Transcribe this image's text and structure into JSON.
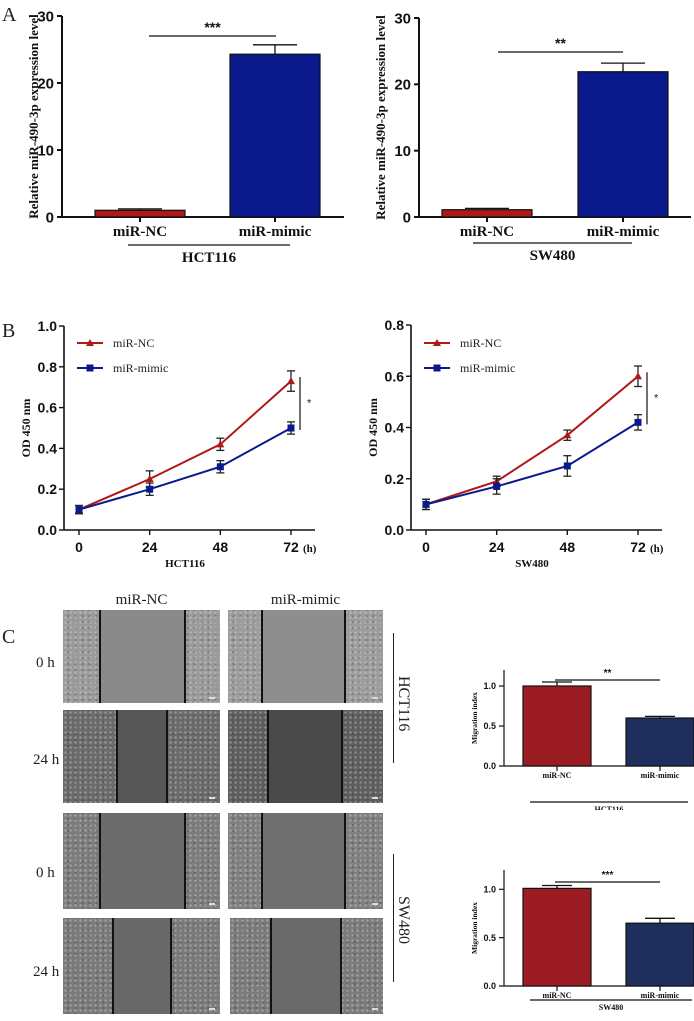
{
  "panels": {
    "A": {
      "letter": "A"
    },
    "B": {
      "letter": "B"
    },
    "C": {
      "letter": "C",
      "columns": [
        "miR-NC",
        "miR-mimic"
      ],
      "rows": [
        {
          "time": "0 h",
          "cell_line": "HCT116"
        },
        {
          "time": "24 h",
          "cell_line": "HCT116"
        },
        {
          "time": "0 h",
          "cell_line": "SW480"
        },
        {
          "time": "24 h",
          "cell_line": "SW480"
        }
      ],
      "group_labels": [
        "HCT116",
        "SW480"
      ]
    }
  },
  "colors": {
    "nc_red": "#b01818",
    "mimic_blue": "#0a1a8c",
    "migration_red": "#9b1c22",
    "migration_blue": "#1e2f5e",
    "axis": "#111111"
  },
  "chart_data": [
    {
      "id": "A-HCT116",
      "type": "bar",
      "title": "",
      "ylabel": "Relative miR-490-3p expression level",
      "xlabel": "HCT116",
      "categories": [
        "miR-NC",
        "miR-mimic"
      ],
      "values": [
        1.0,
        24.3
      ],
      "errors": [
        0.2,
        1.4
      ],
      "ylim": [
        0,
        30
      ],
      "yticks": [
        "0",
        "10",
        "20",
        "30"
      ],
      "significance": "***"
    },
    {
      "id": "A-SW480",
      "type": "bar",
      "title": "",
      "ylabel": "Relative miR-490-3p expression level",
      "xlabel": "SW480",
      "categories": [
        "miR-NC",
        "miR-mimic"
      ],
      "values": [
        1.1,
        21.9
      ],
      "errors": [
        0.2,
        1.3
      ],
      "ylim": [
        0,
        30
      ],
      "yticks": [
        "0",
        "10",
        "20",
        "30"
      ],
      "significance": "**"
    },
    {
      "id": "B-HCT116",
      "type": "line",
      "ylabel": "OD 450 nm",
      "xlabel": "HCT116",
      "x_unit": "(h)",
      "x": [
        0,
        24,
        48,
        72
      ],
      "xticks": [
        "0",
        "24",
        "48",
        "72"
      ],
      "ylim": [
        0,
        1.0
      ],
      "yticks": [
        "0.0",
        "0.2",
        "0.4",
        "0.6",
        "0.8",
        "1.0"
      ],
      "legend": "top-left",
      "series": [
        {
          "name": "miR-NC",
          "values": [
            0.1,
            0.25,
            0.42,
            0.73
          ],
          "errors": [
            0.02,
            0.04,
            0.03,
            0.05
          ],
          "marker": "triangle"
        },
        {
          "name": "miR-mimic",
          "values": [
            0.1,
            0.2,
            0.31,
            0.5
          ],
          "errors": [
            0.02,
            0.03,
            0.03,
            0.03
          ],
          "marker": "square"
        }
      ],
      "significance": "*"
    },
    {
      "id": "B-SW480",
      "type": "line",
      "ylabel": "OD 450 nm",
      "xlabel": "SW480",
      "x_unit": "(h)",
      "x": [
        0,
        24,
        48,
        72
      ],
      "xticks": [
        "0",
        "24",
        "48",
        "72"
      ],
      "ylim": [
        0,
        0.8
      ],
      "yticks": [
        "0.0",
        "0.2",
        "0.4",
        "0.6",
        "0.8"
      ],
      "legend": "top-left",
      "series": [
        {
          "name": "miR-NC",
          "values": [
            0.1,
            0.19,
            0.37,
            0.6
          ],
          "errors": [
            0.02,
            0.02,
            0.02,
            0.04
          ],
          "marker": "triangle"
        },
        {
          "name": "miR-mimic",
          "values": [
            0.1,
            0.17,
            0.25,
            0.42
          ],
          "errors": [
            0.02,
            0.03,
            0.04,
            0.03
          ],
          "marker": "square"
        }
      ],
      "significance": "*"
    },
    {
      "id": "C-HCT116",
      "type": "bar",
      "ylabel": "Migration index",
      "xlabel": "HCT116",
      "categories": [
        "miR-NC",
        "miR-mimic"
      ],
      "values": [
        1.0,
        0.6
      ],
      "errors": [
        0.05,
        0.02
      ],
      "ylim": [
        0,
        1.2
      ],
      "yticks": [
        "0.0",
        "0.5",
        "1.0"
      ],
      "significance": "**"
    },
    {
      "id": "C-SW480",
      "type": "bar",
      "ylabel": "Migration index",
      "xlabel": "SW480",
      "categories": [
        "miR-NC",
        "miR-mimic"
      ],
      "values": [
        1.01,
        0.65
      ],
      "errors": [
        0.03,
        0.05
      ],
      "ylim": [
        0,
        1.2
      ],
      "yticks": [
        "0.0",
        "0.5",
        "1.0"
      ],
      "significance": "***"
    }
  ]
}
